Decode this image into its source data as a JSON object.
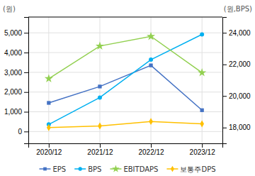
{
  "chart_data": {
    "type": "line",
    "categories": [
      "2020/12",
      "2021/12",
      "2022/12",
      "2023/12"
    ],
    "series": [
      {
        "name": "EPS",
        "color": "#4472C4",
        "marker": "square",
        "values": [
          1450,
          2280,
          3350,
          1080
        ]
      },
      {
        "name": "BPS",
        "color": "#00B0F0",
        "marker": "circle",
        "axis": "y2",
        "values": [
          18200,
          19900,
          22300,
          23900
        ]
      },
      {
        "name": "EBITDAPS",
        "color": "#92D050",
        "marker": "star",
        "values": [
          2680,
          4330,
          4820,
          2980
        ]
      },
      {
        "name": "보통주DPS",
        "color": "#FFC000",
        "marker": "diamond",
        "values": [
          200,
          280,
          510,
          390
        ]
      }
    ],
    "ylabel": "(원)",
    "y2label": "(원,BPS)",
    "ylim": [
      -600,
      5800
    ],
    "yticks": [
      0,
      {
        "value": 1000,
        "label": "1,000"
      },
      {
        "value": 2000,
        "label": "2,000"
      },
      {
        "value": 3000,
        "label": "3,000"
      },
      {
        "value": 4000,
        "label": "4,000"
      },
      {
        "value": 5000,
        "label": "5,000"
      }
    ],
    "y2lim": [
      17000,
      25000
    ],
    "y2ticks": [
      {
        "value": 18000,
        "label": "18,000"
      },
      {
        "value": 20000,
        "label": "20,000"
      },
      {
        "value": 22000,
        "label": "22,000"
      },
      {
        "value": 24000,
        "label": "24,000"
      }
    ],
    "grid": true,
    "legend": "bottom"
  }
}
